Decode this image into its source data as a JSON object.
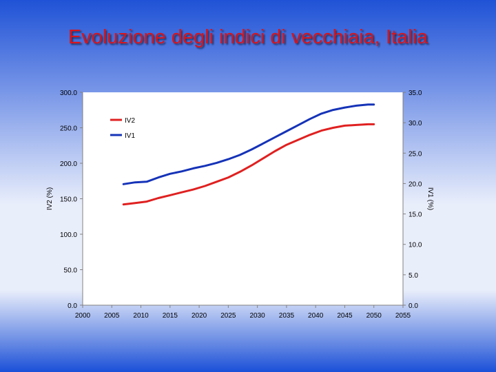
{
  "slide": {
    "title": "Evoluzione degli indici di vecchiaia, Italia"
  },
  "chart_data": {
    "type": "line",
    "title": "",
    "xlabel": "",
    "ylabel_left": "IV2 (%)",
    "ylabel_right": "IV1 (%)",
    "xlim": [
      2000,
      2055
    ],
    "ylim_left": [
      0,
      300
    ],
    "ylim_right": [
      0,
      35
    ],
    "x_ticks": [
      "2000",
      "2005",
      "2010",
      "2015",
      "2020",
      "2025",
      "2030",
      "2035",
      "2040",
      "2045",
      "2050",
      "2055"
    ],
    "y_ticks_left": [
      "0.0",
      "50.0",
      "100.0",
      "150.0",
      "200.0",
      "250.0",
      "300.0"
    ],
    "y_ticks_right": [
      "0.0",
      "5.0",
      "10.0",
      "15.0",
      "20.0",
      "25.0",
      "30.0",
      "35.0"
    ],
    "legend_position": "top-left",
    "grid": false,
    "x": [
      2007,
      2009,
      2011,
      2013,
      2015,
      2017,
      2019,
      2021,
      2023,
      2025,
      2027,
      2029,
      2031,
      2033,
      2035,
      2037,
      2039,
      2041,
      2043,
      2045,
      2047,
      2049,
      2050
    ],
    "series": [
      {
        "name": "IV2",
        "axis": "left",
        "color": "#e02020",
        "values": [
          142,
          144,
          146,
          151,
          155,
          159,
          163,
          168,
          174,
          180,
          188,
          197,
          207,
          217,
          226,
          233,
          240,
          246,
          250,
          253,
          254,
          255,
          255
        ]
      },
      {
        "name": "IV1",
        "axis": "right",
        "color": "#1533b8",
        "values": [
          19.9,
          20.2,
          20.3,
          21.0,
          21.6,
          22.0,
          22.5,
          22.9,
          23.4,
          24.0,
          24.7,
          25.6,
          26.6,
          27.6,
          28.6,
          29.6,
          30.6,
          31.5,
          32.1,
          32.5,
          32.8,
          33.0,
          33.0
        ]
      }
    ]
  }
}
